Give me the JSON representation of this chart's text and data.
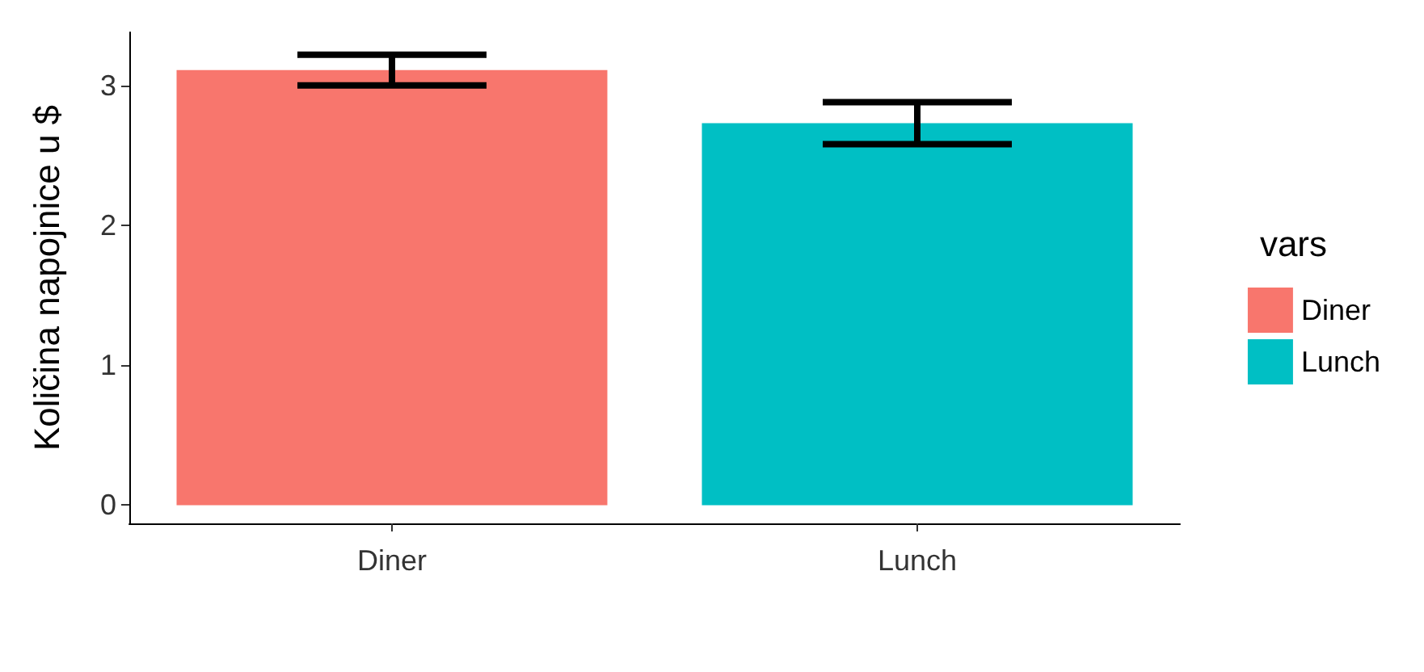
{
  "chart_data": {
    "type": "bar",
    "ylabel": "Količina napojnice u $",
    "legend_title": "vars",
    "categories": [
      "Diner",
      "Lunch"
    ],
    "series": [
      {
        "name": "Diner",
        "color": "#f8766d",
        "values": [
          3.11,
          null
        ],
        "errors": [
          0.11,
          null
        ]
      },
      {
        "name": "Lunch",
        "color": "#00bfc4",
        "values": [
          null,
          2.73
        ],
        "errors": [
          null,
          0.15
        ]
      }
    ],
    "ylim": [
      -0.13,
      3.38
    ],
    "yticks": [
      0,
      1,
      2,
      3
    ],
    "grid": false,
    "legend": "right"
  }
}
